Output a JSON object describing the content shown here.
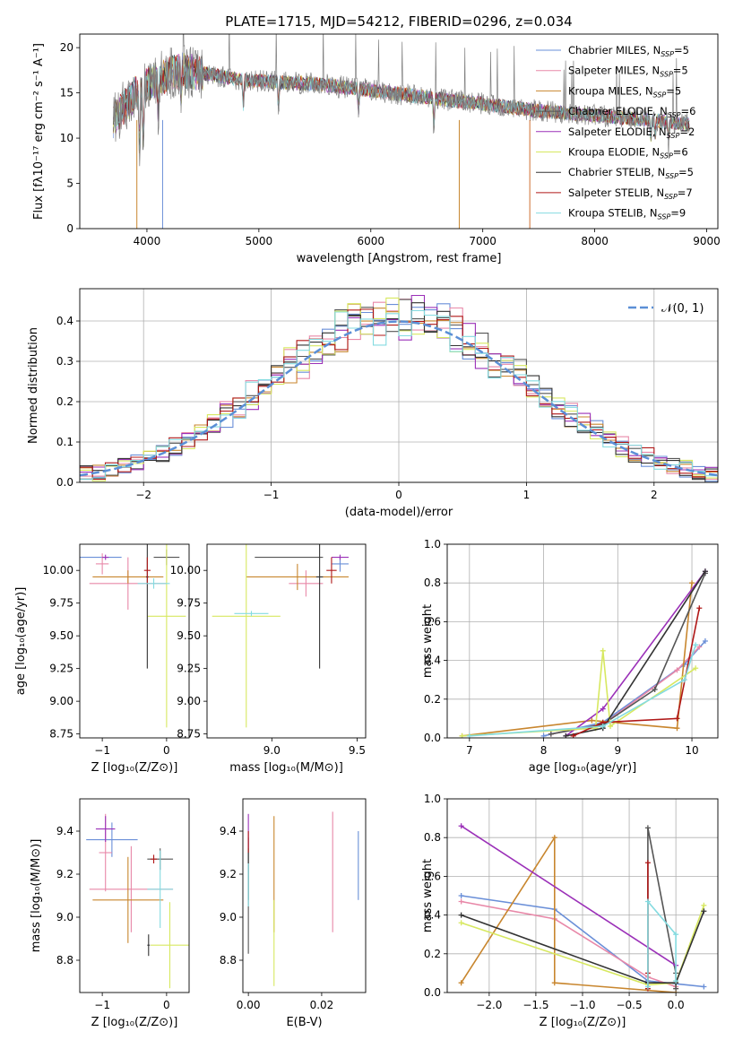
{
  "title": "PLATE=1715, MJD=54212, FIBERID=0296, z=0.034",
  "colors": {
    "Chabrier MILES": "#6a8fd8",
    "Salpeter MILES": "#e888a8",
    "Kroupa MILES": "#c8862e",
    "Chabrier ELODIE": "#555555",
    "Salpeter ELODIE": "#9b30b8",
    "Kroupa ELODIE": "#d7e860",
    "Chabrier STELIB": "#333333",
    "Salpeter STELIB": "#b01818",
    "Kroupa STELIB": "#84dbe0",
    "normal": "#5b8fd6"
  },
  "chart_data": [
    {
      "type": "line",
      "name": "spectrum",
      "xlabel": "wavelength [Angstrom, rest frame]",
      "ylabel": "Flux [fλ10⁻¹⁷ erg cm⁻² s⁻¹ A⁻¹]",
      "xlim": [
        3400,
        9100
      ],
      "ylim": [
        0,
        21.5
      ],
      "xticks": [
        4000,
        5000,
        6000,
        7000,
        8000,
        9000
      ],
      "yticks": [
        0,
        5,
        10,
        15,
        20
      ],
      "grid": false,
      "legend_position": "top-right",
      "continuum": {
        "x": [
          3700,
          3800,
          3900,
          4000,
          4100,
          4200,
          4300,
          4500,
          4800,
          5000,
          5500,
          6000,
          6500,
          7000,
          7500,
          8000,
          8500,
          8850
        ],
        "y": [
          12,
          13.5,
          15,
          16,
          16.5,
          17,
          17.5,
          17.2,
          16.5,
          16.3,
          16,
          15.3,
          14.5,
          13.8,
          13,
          12.5,
          12,
          11.5
        ]
      },
      "legend": [
        {
          "label": "Chabrier MILES, N",
          "sub": "SSP",
          "suffix": "=5"
        },
        {
          "label": "Salpeter MILES, N",
          "sub": "SSP",
          "suffix": "=5"
        },
        {
          "label": "Kroupa MILES, N",
          "sub": "SSP",
          "suffix": "=5"
        },
        {
          "label": "Chabrier ELODIE, N",
          "sub": "SSP",
          "suffix": "=6"
        },
        {
          "label": "Salpeter ELODIE, N",
          "sub": "SSP",
          "suffix": "=2"
        },
        {
          "label": "Kroupa ELODIE, N",
          "sub": "SSP",
          "suffix": "=6"
        },
        {
          "label": "Chabrier STELIB, N",
          "sub": "SSP",
          "suffix": "=5"
        },
        {
          "label": "Salpeter STELIB, N",
          "sub": "SSP",
          "suffix": "=7"
        },
        {
          "label": "Kroupa STELIB, N",
          "sub": "SSP",
          "suffix": "=9"
        }
      ]
    },
    {
      "type": "step",
      "name": "residual histogram",
      "xlabel": "(data-model)/error",
      "ylabel": "Normed distribution",
      "xlim": [
        -2.5,
        2.5
      ],
      "ylim": [
        0,
        0.48
      ],
      "xticks": [
        -2,
        -1,
        0,
        1,
        2
      ],
      "xtick_labels": [
        "−2",
        "−1",
        "0",
        "1",
        "2"
      ],
      "yticks": [
        0.0,
        0.1,
        0.2,
        0.3,
        0.4
      ],
      "grid": true,
      "legend_position": "top-right",
      "normal_label": "𝒩(0, 1)"
    },
    {
      "type": "errorbar",
      "name": "age vs Z",
      "xlabel": "Z [log₁₀(Z/Z⊙)]",
      "ylabel": "age  [log₁₀(age/yr)]",
      "xlim": [
        -1.35,
        0.35
      ],
      "ylim": [
        8.72,
        10.2
      ],
      "xticks": [
        -1,
        0
      ],
      "xtick_labels": [
        "−1",
        "0"
      ],
      "yticks": [
        8.75,
        9.0,
        9.25,
        9.5,
        9.75,
        10.0
      ],
      "ytick_labels": [
        "8.75",
        "9.00",
        "9.25",
        "9.50",
        "9.75",
        "10.00"
      ],
      "points": [
        {
          "model": "Chabrier MILES",
          "x": -1.1,
          "xerr": 0.4,
          "y": 10.1,
          "yerr": 0.0
        },
        {
          "model": "Salpeter MILES",
          "x": -1.0,
          "xerr": 0.1,
          "y": 10.05,
          "yerr": 0.08
        },
        {
          "model": "Salpeter MILES",
          "x": -0.6,
          "xerr": 0.6,
          "y": 9.9,
          "yerr": 0.2
        },
        {
          "model": "Kroupa MILES",
          "x": -0.6,
          "xerr": 0.55,
          "y": 9.95,
          "yerr": 0.05
        },
        {
          "model": "Chabrier ELODIE",
          "x": 0.0,
          "xerr": 0.2,
          "y": 10.1,
          "yerr": 0.06
        },
        {
          "model": "Salpeter ELODIE",
          "x": -0.95,
          "xerr": 0.05,
          "y": 10.1,
          "yerr": 0.02
        },
        {
          "model": "Kroupa ELODIE",
          "x": 0.0,
          "xerr": 0.3,
          "y": 9.65,
          "yerr": 0.85
        },
        {
          "model": "Chabrier STELIB",
          "x": -0.3,
          "xerr": 0.02,
          "y": 9.95,
          "yerr": 0.7
        },
        {
          "model": "Salpeter STELIB",
          "x": -0.3,
          "xerr": 0.05,
          "y": 10.0,
          "yerr": 0.1
        },
        {
          "model": "Kroupa STELIB",
          "x": -0.2,
          "xerr": 0.25,
          "y": 9.9,
          "yerr": 0.04
        }
      ]
    },
    {
      "type": "errorbar",
      "name": "age vs mass",
      "xlabel": "mass [log₁₀(M/M⊙)]",
      "xlim": [
        8.62,
        9.55
      ],
      "ylim": [
        8.72,
        10.2
      ],
      "xticks": [
        9.0,
        9.5
      ],
      "xtick_labels": [
        "9.0",
        "9.5"
      ],
      "yticks": [
        8.75,
        9.0,
        9.25,
        9.5,
        9.75,
        10.0
      ],
      "ytick_labels": [
        "8.75",
        "9.00",
        "9.25",
        "9.50",
        "9.75",
        "10.00"
      ],
      "points": [
        {
          "model": "Chabrier MILES",
          "x": 9.4,
          "xerr": 0.05,
          "y": 10.05,
          "yerr": 0.06
        },
        {
          "model": "Salpeter MILES",
          "x": 9.2,
          "xerr": 0.1,
          "y": 9.9,
          "yerr": 0.1
        },
        {
          "model": "Kroupa MILES",
          "x": 9.15,
          "xerr": 0.3,
          "y": 9.95,
          "yerr": 0.1
        },
        {
          "model": "Chabrier ELODIE",
          "x": 9.1,
          "xerr": 0.2,
          "y": 10.1,
          "yerr": 0.0
        },
        {
          "model": "Salpeter ELODIE",
          "x": 9.4,
          "xerr": 0.05,
          "y": 10.1,
          "yerr": 0.02
        },
        {
          "model": "Kroupa ELODIE",
          "x": 8.85,
          "xerr": 0.2,
          "y": 9.65,
          "yerr": 0.85
        },
        {
          "model": "Chabrier STELIB",
          "x": 9.28,
          "xerr": 0.02,
          "y": 9.95,
          "yerr": 0.7
        },
        {
          "model": "Salpeter STELIB",
          "x": 9.35,
          "xerr": 0.03,
          "y": 10.0,
          "yerr": 0.1
        },
        {
          "model": "Kroupa STELIB",
          "x": 8.88,
          "xerr": 0.1,
          "y": 9.67,
          "yerr": 0.02
        }
      ]
    },
    {
      "type": "line",
      "name": "mass weight vs age",
      "xlabel": "age  [log₁₀(age/yr)]",
      "ylabel": "mass weight",
      "xlim": [
        6.7,
        10.35
      ],
      "ylim": [
        0,
        1.0
      ],
      "xticks": [
        7,
        8,
        9,
        10
      ],
      "yticks": [
        0.0,
        0.2,
        0.4,
        0.6,
        0.8,
        1.0
      ],
      "grid": true,
      "series": [
        {
          "model": "Chabrier MILES",
          "x": [
            8.0,
            8.8,
            9.9,
            10.18
          ],
          "y": [
            0.01,
            0.08,
            0.38,
            0.5
          ]
        },
        {
          "model": "Salpeter MILES",
          "x": [
            8.1,
            8.8,
            9.8,
            10.1
          ],
          "y": [
            0.02,
            0.07,
            0.35,
            0.47
          ]
        },
        {
          "model": "Kroupa MILES",
          "x": [
            6.9,
            8.65,
            9.8,
            10.0
          ],
          "y": [
            0.01,
            0.09,
            0.05,
            0.8
          ]
        },
        {
          "model": "Chabrier ELODIE",
          "x": [
            8.1,
            8.8,
            9.5,
            10.18
          ],
          "y": [
            0.02,
            0.07,
            0.25,
            0.85
          ]
        },
        {
          "model": "Salpeter ELODIE",
          "x": [
            8.3,
            8.8,
            10.18
          ],
          "y": [
            0.01,
            0.15,
            0.86
          ]
        },
        {
          "model": "Kroupa ELODIE",
          "x": [
            6.9,
            8.7,
            8.8,
            8.9,
            10.05
          ],
          "y": [
            0.01,
            0.05,
            0.45,
            0.06,
            0.36
          ]
        },
        {
          "model": "Chabrier STELIB",
          "x": [
            8.3,
            8.8,
            10.18
          ],
          "y": [
            0.01,
            0.05,
            0.86
          ]
        },
        {
          "model": "Salpeter STELIB",
          "x": [
            8.4,
            8.8,
            9.8,
            10.1
          ],
          "y": [
            0.01,
            0.08,
            0.1,
            0.67
          ]
        },
        {
          "model": "Kroupa STELIB",
          "x": [
            7.0,
            8.8,
            9.9,
            10.05
          ],
          "y": [
            0.01,
            0.06,
            0.3,
            0.48
          ]
        }
      ]
    },
    {
      "type": "errorbar",
      "name": "mass vs Z",
      "xlabel": "Z [log₁₀(Z/Z⊙)]",
      "ylabel": "mass [log₁₀(M/M⊙)]",
      "xlim": [
        -1.35,
        0.35
      ],
      "ylim": [
        8.65,
        9.55
      ],
      "xticks": [
        -1,
        0
      ],
      "xtick_labels": [
        "−1",
        "0"
      ],
      "yticks": [
        8.8,
        9.0,
        9.2,
        9.4
      ],
      "ytick_labels": [
        "8.8",
        "9.0",
        "9.2",
        "9.4"
      ],
      "points": [
        {
          "model": "Chabrier MILES",
          "x": -0.85,
          "xerr": 0.4,
          "y": 9.36,
          "yerr": 0.08
        },
        {
          "model": "Salpeter MILES",
          "x": -0.95,
          "xerr": 0.1,
          "y": 9.3,
          "yerr": 0.18
        },
        {
          "model": "Salpeter MILES",
          "x": -0.55,
          "xerr": 0.65,
          "y": 9.13,
          "yerr": 0.2
        },
        {
          "model": "Kroupa MILES",
          "x": -0.6,
          "xerr": 0.55,
          "y": 9.08,
          "yerr": 0.2
        },
        {
          "model": "Chabrier ELODIE",
          "x": -0.1,
          "xerr": 0.2,
          "y": 9.27,
          "yerr": 0.05
        },
        {
          "model": "Salpeter ELODIE",
          "x": -0.95,
          "xerr": 0.15,
          "y": 9.41,
          "yerr": 0.06
        },
        {
          "model": "Kroupa ELODIE",
          "x": 0.05,
          "xerr": 0.3,
          "y": 8.87,
          "yerr": 0.2
        },
        {
          "model": "Chabrier STELIB",
          "x": -0.28,
          "xerr": 0.02,
          "y": 8.87,
          "yerr": 0.05
        },
        {
          "model": "Salpeter STELIB",
          "x": -0.2,
          "xerr": 0.05,
          "y": 9.27,
          "yerr": 0.02
        },
        {
          "model": "Kroupa STELIB",
          "x": -0.1,
          "xerr": 0.2,
          "y": 9.13,
          "yerr": 0.18
        }
      ]
    },
    {
      "type": "errorbar",
      "name": "mass vs E(B-V)",
      "xlabel": "E(B-V)",
      "xlim": [
        -0.0015,
        0.032
      ],
      "ylim": [
        8.65,
        9.55
      ],
      "xticks": [
        0.0,
        0.02
      ],
      "xtick_labels": [
        "0.00",
        "0.02"
      ],
      "yticks": [
        8.8,
        9.0,
        9.2,
        9.4
      ],
      "ytick_labels": [
        "8.8",
        "9.0",
        "9.2",
        "9.4"
      ],
      "points": [
        {
          "model": "Chabrier MILES",
          "x": 0.03,
          "y": 9.24,
          "yerr": 0.16
        },
        {
          "model": "Salpeter MILES",
          "x": 0.023,
          "y": 9.21,
          "yerr": 0.28
        },
        {
          "model": "Kroupa MILES",
          "x": 0.007,
          "y": 9.2,
          "yerr": 0.27
        },
        {
          "model": "Chabrier ELODIE",
          "x": 0.0,
          "y": 9.1,
          "yerr": 0.27
        },
        {
          "model": "Salpeter ELODIE",
          "x": 0.0,
          "y": 9.4,
          "yerr": 0.08
        },
        {
          "model": "Kroupa ELODIE",
          "x": 0.007,
          "y": 8.88,
          "yerr": 0.2
        },
        {
          "model": "Chabrier STELIB",
          "x": 0.0,
          "y": 9.2,
          "yerr": 0.12
        },
        {
          "model": "Salpeter STELIB",
          "x": 0.0,
          "y": 9.35,
          "yerr": 0.05
        },
        {
          "model": "Kroupa STELIB",
          "x": 0.0,
          "y": 9.15,
          "yerr": 0.1
        }
      ]
    },
    {
      "type": "line",
      "name": "mass weight vs Z",
      "xlabel": "Z [log₁₀(Z/Z⊙)]",
      "ylabel": "mass weight",
      "xlim": [
        -2.45,
        0.45
      ],
      "ylim": [
        0,
        1.0
      ],
      "xticks": [
        -2.0,
        -1.5,
        -1.0,
        -0.5,
        0.0
      ],
      "xtick_labels": [
        "−2.0",
        "−1.5",
        "−1.0",
        "−0.5",
        "0.0"
      ],
      "yticks": [
        0.0,
        0.2,
        0.4,
        0.6,
        0.8,
        1.0
      ],
      "grid": true,
      "series": [
        {
          "model": "Chabrier MILES",
          "x": [
            -2.3,
            -1.3,
            -0.3,
            0.3
          ],
          "y": [
            0.5,
            0.43,
            0.06,
            0.03
          ]
        },
        {
          "model": "Salpeter MILES",
          "x": [
            -2.3,
            -1.3,
            -0.3,
            0.0
          ],
          "y": [
            0.47,
            0.38,
            0.08,
            0.03
          ]
        },
        {
          "model": "Kroupa MILES",
          "x": [
            -2.3,
            -1.3,
            -1.3,
            0.0
          ],
          "y": [
            0.05,
            0.8,
            0.05,
            0.0
          ]
        },
        {
          "model": "Chabrier ELODIE",
          "x": [
            -0.3,
            -0.3,
            0.0,
            0.0
          ],
          "y": [
            0.05,
            0.85,
            0.1,
            0.02
          ]
        },
        {
          "model": "Salpeter ELODIE",
          "x": [
            -2.3,
            0.0
          ],
          "y": [
            0.86,
            0.14
          ]
        },
        {
          "model": "Kroupa ELODIE",
          "x": [
            -2.3,
            -0.3,
            0.0,
            0.3
          ],
          "y": [
            0.36,
            0.04,
            0.05,
            0.45
          ]
        },
        {
          "model": "Chabrier STELIB",
          "x": [
            -2.3,
            -0.3,
            0.0,
            0.3
          ],
          "y": [
            0.4,
            0.05,
            0.05,
            0.42
          ]
        },
        {
          "model": "Salpeter STELIB",
          "x": [
            -0.3,
            -0.3,
            -0.3
          ],
          "y": [
            0.02,
            0.67,
            0.1
          ]
        },
        {
          "model": "Kroupa STELIB",
          "x": [
            -0.3,
            -0.3,
            0.0,
            0.0
          ],
          "y": [
            0.03,
            0.47,
            0.3,
            0.06
          ]
        }
      ]
    }
  ]
}
